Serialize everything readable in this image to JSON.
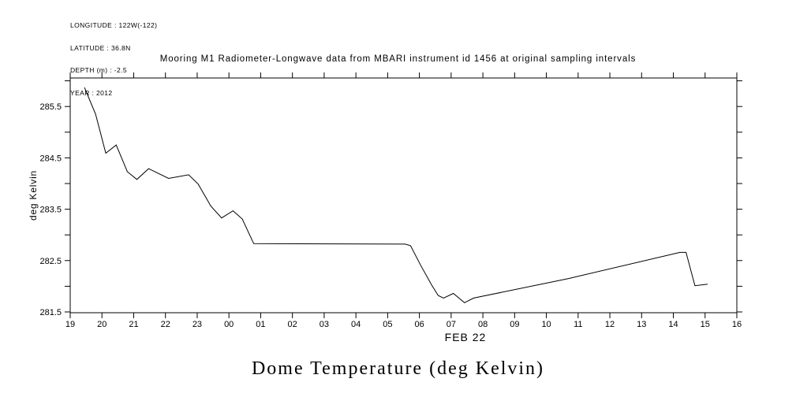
{
  "meta": {
    "lines": [
      "LONGITUDE : 122W(-122)",
      "LATITUDE : 36.8N",
      "DEPTH (m) : -2.5",
      "YEAR : 2012"
    ]
  },
  "title": "Mooring M1 Radiometer-Longwave data from MBARI instrument id 1456 at original sampling intervals",
  "y_axis_label": "deg Kelvin",
  "x_axis_date_label": "FEB 22",
  "bottom_title": "Dome Temperature (deg Kelvin)",
  "colors": {
    "foreground": "#000000",
    "background": "#ffffff"
  },
  "chart_data": {
    "type": "line",
    "title": "Mooring M1 Radiometer-Longwave data from MBARI instrument id 1456 at original sampling intervals",
    "xlabel": "FEB 22",
    "ylabel": "deg Kelvin",
    "legend": null,
    "grid": false,
    "xlim_hours": [
      19,
      40
    ],
    "ylim": [
      281.45,
      286.05
    ],
    "x_tick_labels": [
      "19",
      "20",
      "21",
      "22",
      "23",
      "00",
      "01",
      "02",
      "03",
      "04",
      "05",
      "06",
      "07",
      "08",
      "09",
      "10",
      "11",
      "12",
      "13",
      "14",
      "15",
      "16"
    ],
    "y_ticks": {
      "values": [
        281.5,
        282.0,
        282.5,
        283.0,
        283.5,
        284.0,
        284.5,
        285.0,
        285.5,
        286.0
      ],
      "labeled": [
        {
          "value": 281.5,
          "label": "281.5"
        },
        {
          "value": 282.5,
          "label": "282.5"
        },
        {
          "value": 283.5,
          "label": "283.5"
        },
        {
          "value": 284.5,
          "label": "284.5"
        },
        {
          "value": 285.5,
          "label": "285.5"
        }
      ]
    },
    "series": [
      {
        "name": "dome_temperature_deg_kelvin",
        "points": [
          [
            19.45,
            285.87
          ],
          [
            19.8,
            285.35
          ],
          [
            20.12,
            284.59
          ],
          [
            20.45,
            284.75
          ],
          [
            20.8,
            284.23
          ],
          [
            21.1,
            284.08
          ],
          [
            21.47,
            284.29
          ],
          [
            22.1,
            284.1
          ],
          [
            22.73,
            284.17
          ],
          [
            23.03,
            283.99
          ],
          [
            23.43,
            283.56
          ],
          [
            23.77,
            283.33
          ],
          [
            24.13,
            283.47
          ],
          [
            24.42,
            283.31
          ],
          [
            24.78,
            282.83
          ],
          [
            29.55,
            282.82
          ],
          [
            29.72,
            282.79
          ],
          [
            30.04,
            282.41
          ],
          [
            30.38,
            282.03
          ],
          [
            30.59,
            281.82
          ],
          [
            30.76,
            281.77
          ],
          [
            31.07,
            281.86
          ],
          [
            31.42,
            281.68
          ],
          [
            31.71,
            281.77
          ],
          [
            34.7,
            282.15
          ],
          [
            38.21,
            282.66
          ],
          [
            38.4,
            282.66
          ],
          [
            38.68,
            282.01
          ],
          [
            39.08,
            282.04
          ]
        ]
      }
    ]
  }
}
